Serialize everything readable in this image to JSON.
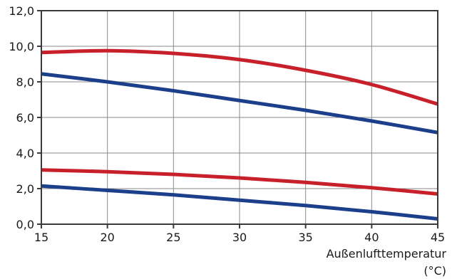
{
  "chart_data": {
    "type": "line",
    "title": "",
    "xlabel": "Außenlufttemperatur",
    "xlabel_unit": "(°C)",
    "ylabel": "",
    "xlim": [
      15,
      45
    ],
    "ylim": [
      0,
      12
    ],
    "x_ticks": [
      15,
      20,
      25,
      30,
      35,
      40,
      45
    ],
    "y_ticks": [
      0,
      2,
      4,
      6,
      8,
      10,
      12
    ],
    "y_tick_labels": [
      "0,0",
      "2,0",
      "4,0",
      "6,0",
      "8,0",
      "10,0",
      "12,0"
    ],
    "grid": true,
    "legend": "none",
    "series": [
      {
        "color": "#c8202b",
        "x": [
          15,
          20,
          25,
          30,
          35,
          40,
          45
        ],
        "y": [
          9.65,
          9.75,
          9.6,
          9.25,
          8.65,
          7.85,
          6.75
        ]
      },
      {
        "color": "#1b3f8b",
        "x": [
          15,
          20,
          25,
          30,
          35,
          40,
          45
        ],
        "y": [
          8.45,
          8.0,
          7.5,
          6.95,
          6.4,
          5.8,
          5.15
        ]
      },
      {
        "color": "#c8202b",
        "x": [
          15,
          20,
          25,
          30,
          35,
          40,
          45
        ],
        "y": [
          3.05,
          2.95,
          2.8,
          2.6,
          2.35,
          2.05,
          1.7
        ]
      },
      {
        "color": "#1b3f8b",
        "x": [
          15,
          20,
          25,
          30,
          35,
          40,
          45
        ],
        "y": [
          2.15,
          1.9,
          1.65,
          1.35,
          1.05,
          0.7,
          0.3
        ]
      }
    ]
  }
}
